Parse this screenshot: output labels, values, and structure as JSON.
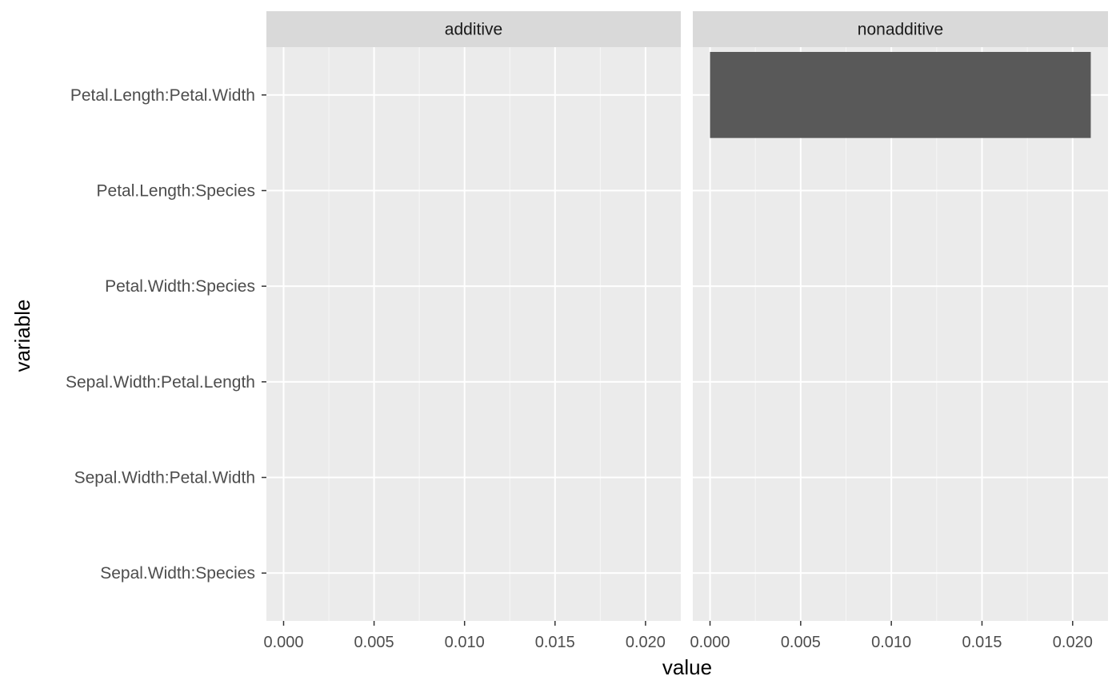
{
  "chart_data": {
    "type": "bar",
    "orientation": "horizontal",
    "xlabel": "value",
    "ylabel": "variable",
    "xlim": [
      -0.00095,
      0.02195
    ],
    "xticks": [
      0.0,
      0.005,
      0.01,
      0.015,
      0.02
    ],
    "xtick_labels": [
      "0.000",
      "0.005",
      "0.010",
      "0.015",
      "0.020"
    ],
    "categories": [
      "Petal.Length:Petal.Width",
      "Petal.Length:Species",
      "Petal.Width:Species",
      "Sepal.Width:Petal.Length",
      "Sepal.Width:Petal.Width",
      "Sepal.Width:Species"
    ],
    "facets": [
      {
        "label": "additive",
        "values": [
          0,
          0,
          0,
          0,
          0,
          0
        ]
      },
      {
        "label": "nonadditive",
        "values": [
          0.021,
          0,
          0,
          0,
          0,
          0
        ]
      }
    ],
    "colors": {
      "bar": "#595959",
      "panel": "#ebebeb",
      "strip": "#d9d9d9",
      "grid_major": "#ffffff",
      "tick_text": "#4d4d4d"
    },
    "grid": true,
    "legend": "none"
  }
}
